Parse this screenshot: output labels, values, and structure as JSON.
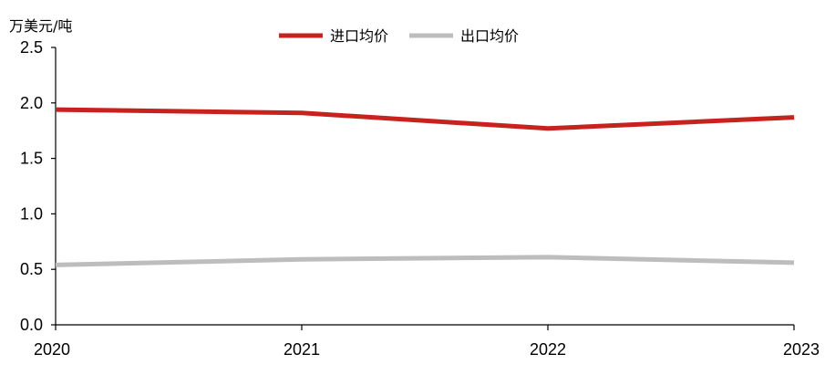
{
  "chart_data": {
    "type": "line",
    "ylabel": "万美元/吨",
    "x": [
      "2020",
      "2021",
      "2022",
      "2023"
    ],
    "ylim": [
      0,
      2.5
    ],
    "yticks": [
      "0.0",
      "0.5",
      "1.0",
      "1.5",
      "2.0",
      "2.5"
    ],
    "grid": false,
    "legend_position": "top-center",
    "series": [
      {
        "name": "进口均价",
        "color": "#c8221e",
        "values": [
          1.94,
          1.91,
          1.77,
          1.87
        ]
      },
      {
        "name": "出口均价",
        "color": "#bdbdbd",
        "values": [
          0.54,
          0.59,
          0.61,
          0.56
        ]
      }
    ]
  }
}
